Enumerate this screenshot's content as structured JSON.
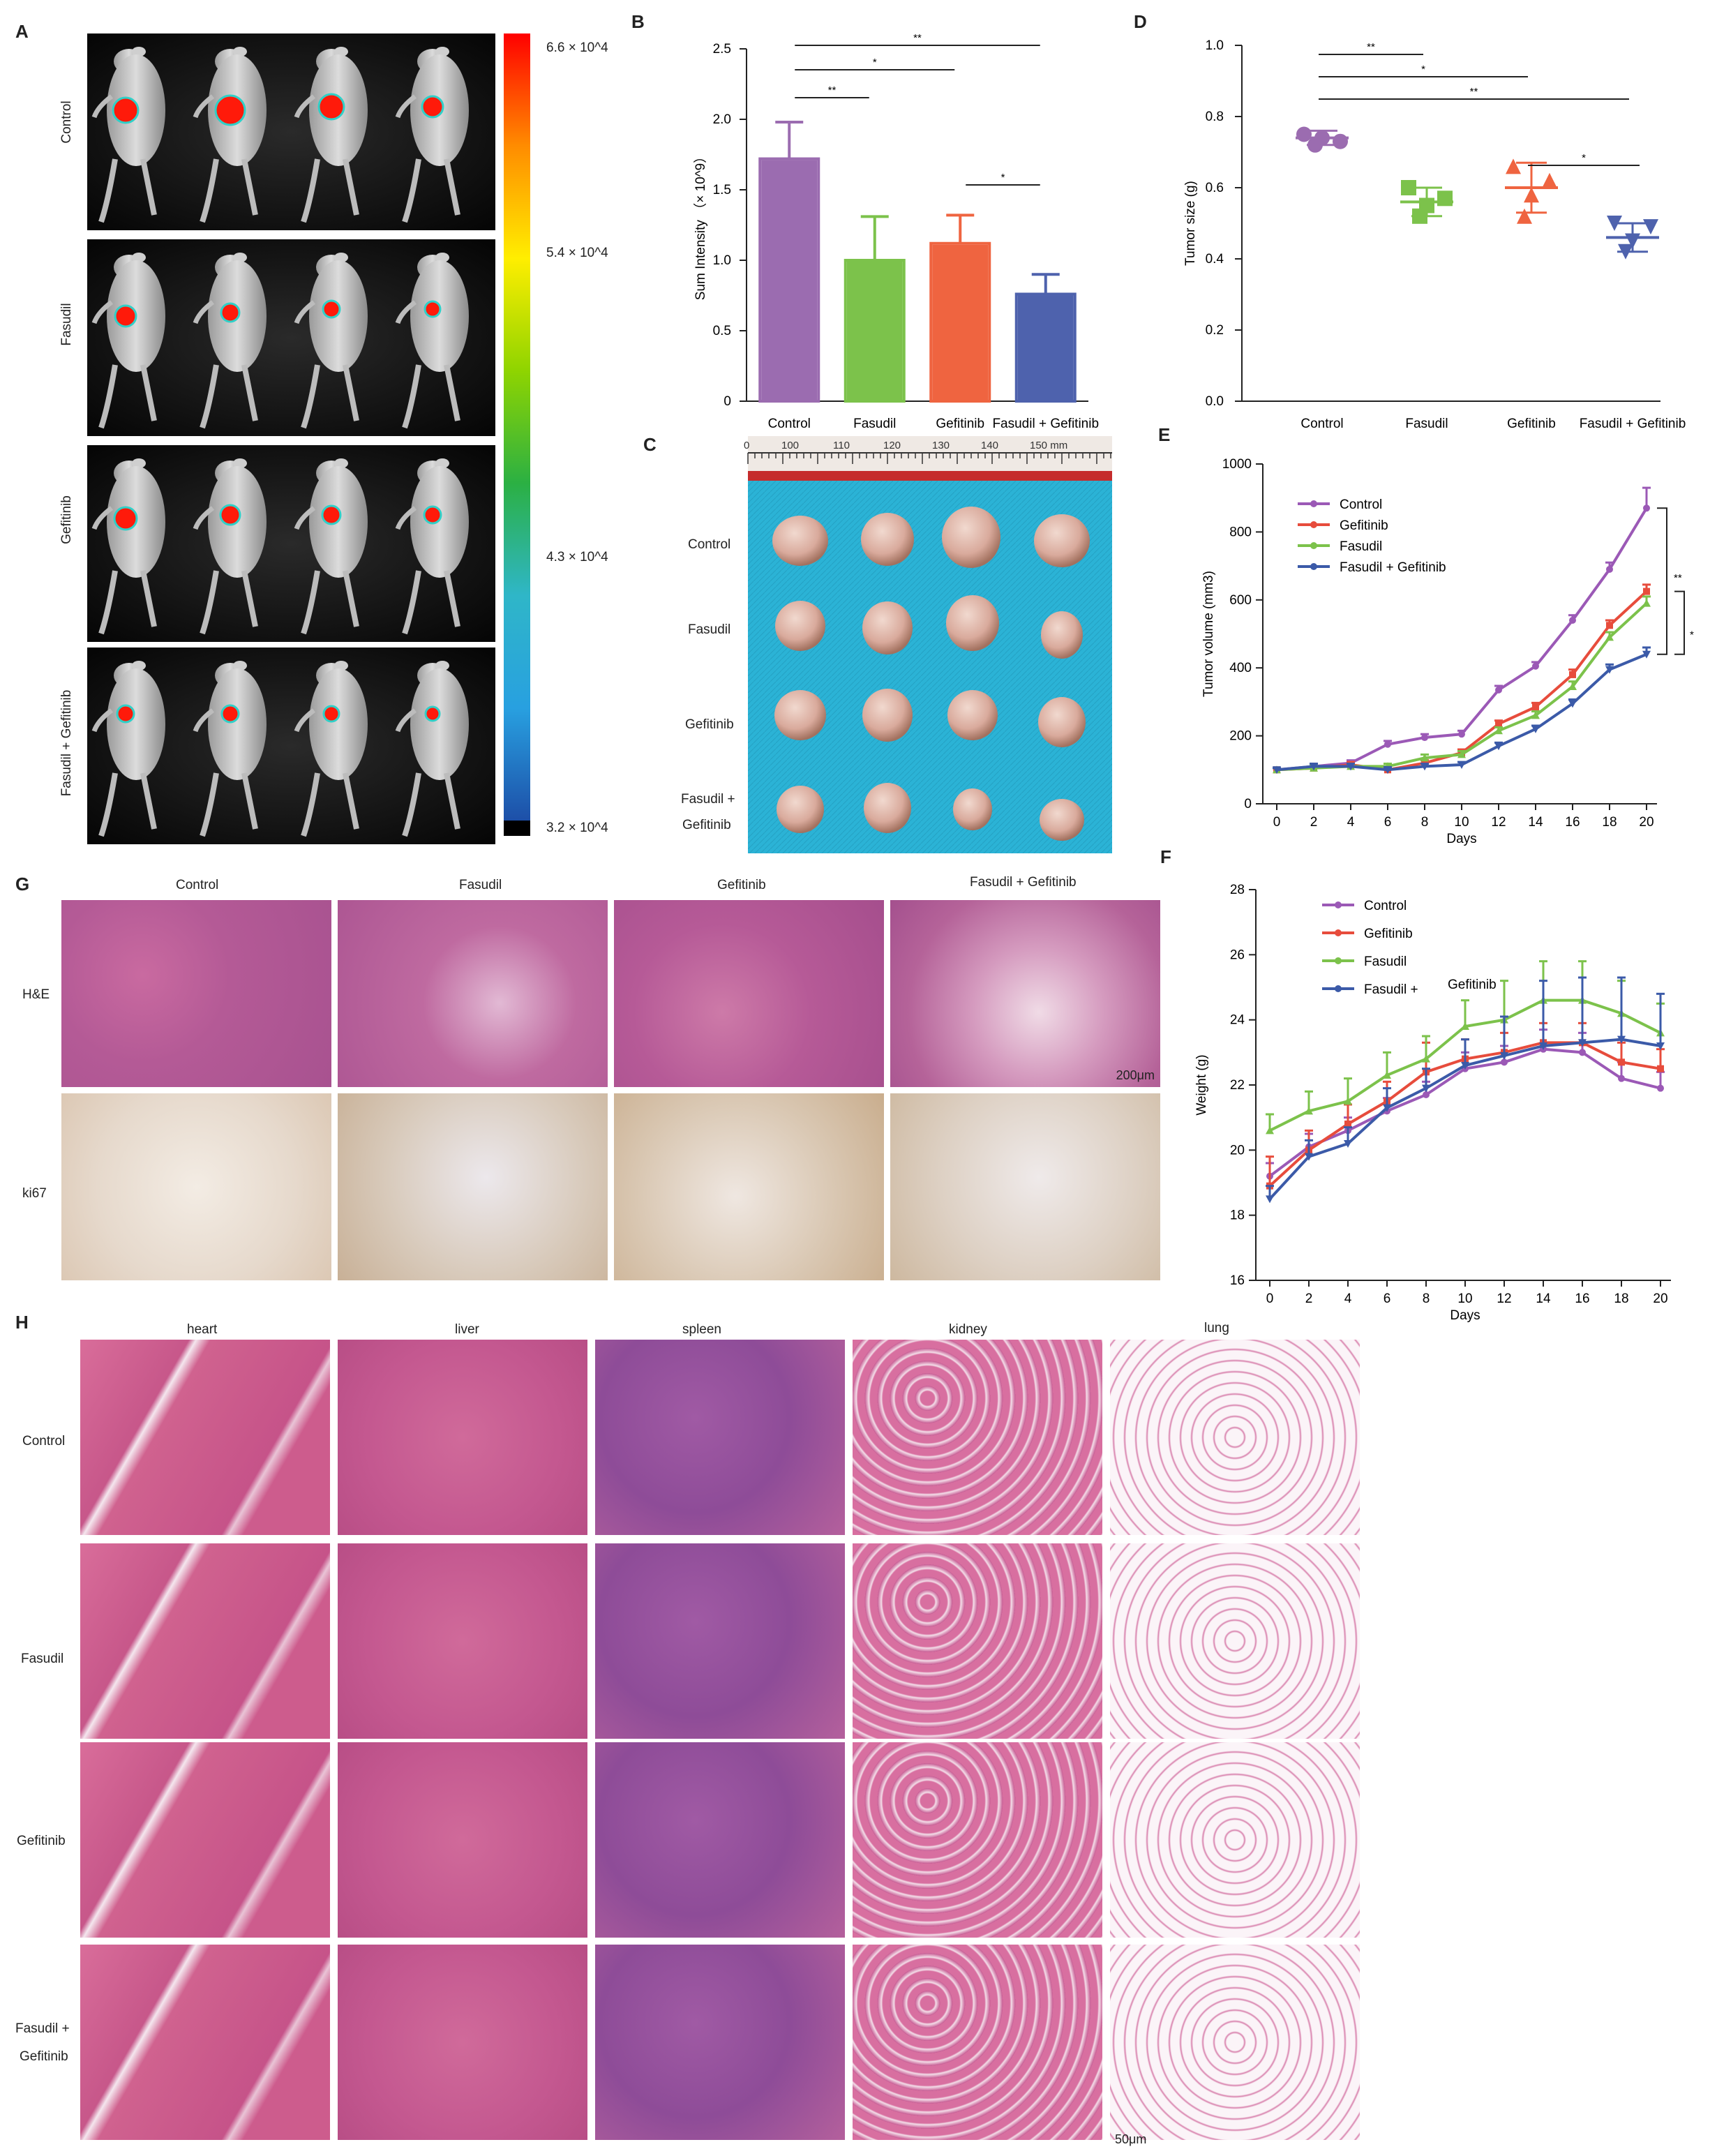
{
  "panel_labels": [
    "A",
    "B",
    "C",
    "D",
    "E",
    "F",
    "G",
    "H"
  ],
  "panel_a": {
    "groups": [
      "Control",
      "Fasudil",
      "Gefitinib",
      "Fasudil + Gefitinib"
    ],
    "colorbar": {
      "max_label": "6.6 × 10^4",
      "mid1_label": "5.4 × 10^4",
      "mid2_label": "4.3 × 10^4",
      "min_label": "3.2 × 10^4",
      "colors": [
        "#ff0000",
        "#ff8c00",
        "#ffee00",
        "#8fd400",
        "#2bb043",
        "#2fb6c8",
        "#28a0e0",
        "#1d4fa8",
        "#000000"
      ]
    }
  },
  "panel_c": {
    "row_labels": [
      "Control",
      "Fasudil",
      "Gefitinib",
      "Fasudil +",
      "Gefitinib"
    ],
    "ruler_labels": [
      "0",
      "100",
      "110",
      "120",
      "130",
      "140",
      "150 mm"
    ]
  },
  "panel_g": {
    "column_labels": [
      "Control",
      "Fasudil",
      "Gefitinib",
      "Fasudil + Gefitinib"
    ],
    "row_labels": [
      "H&E",
      "ki67"
    ],
    "scale_bar": "200μm"
  },
  "panel_h": {
    "column_labels": [
      "heart",
      "liver",
      "spleen",
      "kidney",
      "lung"
    ],
    "row_labels": [
      "Control",
      "Fasudil",
      "Gefitinib",
      "Fasudil +",
      "Gefitinib"
    ],
    "scale_bar": "50μm"
  },
  "chart_data": [
    {
      "panel": "B",
      "type": "bar",
      "categories": [
        "Control",
        "Fasudil",
        "Gefitinib",
        "Fasudil + Gefitinib"
      ],
      "values": [
        1.72,
        1.0,
        1.12,
        0.76
      ],
      "errors": [
        0.26,
        0.31,
        0.2,
        0.14
      ],
      "colors": [
        "#9b6cb0",
        "#7cc24b",
        "#ef6440",
        "#4e62ad"
      ],
      "ylabel": "Sum Intensity （× 10^9）",
      "ylim": [
        0,
        2.5
      ],
      "yticks": [
        "0",
        "0.5",
        "1.0",
        "1.5",
        "2.0",
        "2.5"
      ],
      "significance": [
        {
          "from": 0,
          "to": 1,
          "label": "**"
        },
        {
          "from": 0,
          "to": 2,
          "label": "*"
        },
        {
          "from": 0,
          "to": 3,
          "label": "**"
        },
        {
          "from": 2,
          "to": 3,
          "label": "*"
        }
      ]
    },
    {
      "panel": "D",
      "type": "scatter",
      "categories": [
        "Control",
        "Fasudil",
        "Gefitinib",
        "Fasudil +  Gefitinib"
      ],
      "points": [
        [
          0.75,
          0.73,
          0.74,
          0.72
        ],
        [
          0.6,
          0.57,
          0.55,
          0.52
        ],
        [
          0.66,
          0.62,
          0.58,
          0.52
        ],
        [
          0.5,
          0.49,
          0.45,
          0.42
        ]
      ],
      "means": [
        0.74,
        0.56,
        0.6,
        0.46
      ],
      "sd": [
        0.02,
        0.04,
        0.07,
        0.04
      ],
      "colors": [
        "#9b6cb0",
        "#7cc24b",
        "#ef6440",
        "#4e62ad"
      ],
      "markers": [
        "circle",
        "square",
        "triangle-up",
        "triangle-down"
      ],
      "ylabel": "Tumor size (g)",
      "ylim": [
        0,
        1.0
      ],
      "yticks": [
        "0.0",
        "0.2",
        "0.4",
        "0.6",
        "0.8",
        "1.0"
      ],
      "significance": [
        {
          "from": 0,
          "to": 1,
          "label": "**"
        },
        {
          "from": 0,
          "to": 2,
          "label": "*"
        },
        {
          "from": 0,
          "to": 3,
          "label": "**"
        },
        {
          "from": 2,
          "to": 3,
          "label": "*"
        }
      ]
    },
    {
      "panel": "E",
      "type": "line",
      "x": [
        0,
        2,
        4,
        6,
        8,
        10,
        12,
        14,
        16,
        18,
        20
      ],
      "xticks": [
        "0",
        "2",
        "4",
        "6",
        "8",
        "10",
        "12",
        "14",
        "16",
        "18",
        "20"
      ],
      "xlabel": "Days",
      "ylabel": "Tumor volume (mm3)",
      "ylim": [
        0,
        1000
      ],
      "yticks": [
        "0",
        "200",
        "400",
        "600",
        "800",
        "1000"
      ],
      "series": [
        {
          "name": "Control",
          "color": "#9b59b6",
          "values": [
            100,
            110,
            120,
            175,
            195,
            205,
            335,
            405,
            540,
            690,
            870
          ],
          "err": [
            5,
            8,
            8,
            10,
            10,
            10,
            12,
            12,
            15,
            20,
            60
          ]
        },
        {
          "name": "Gefitinib",
          "color": "#e74c3c",
          "values": [
            100,
            105,
            115,
            100,
            120,
            150,
            235,
            285,
            380,
            525,
            625
          ],
          "err": [
            5,
            8,
            8,
            8,
            8,
            10,
            10,
            12,
            15,
            15,
            20
          ]
        },
        {
          "name": "Fasudil",
          "color": "#7cc24b",
          "values": [
            100,
            105,
            110,
            110,
            135,
            145,
            215,
            260,
            345,
            490,
            590
          ],
          "err": [
            5,
            8,
            8,
            8,
            10,
            10,
            10,
            12,
            15,
            15,
            20
          ]
        },
        {
          "name": "Fasudil +      Gefitinib",
          "color": "#3b5aa8",
          "values": [
            100,
            110,
            110,
            100,
            110,
            115,
            170,
            220,
            295,
            395,
            440
          ],
          "err": [
            5,
            8,
            8,
            8,
            8,
            8,
            10,
            10,
            12,
            15,
            20
          ]
        }
      ],
      "significance": [
        {
          "label": "**"
        },
        {
          "label": "*"
        }
      ]
    },
    {
      "panel": "F",
      "type": "line",
      "x": [
        0,
        2,
        4,
        6,
        8,
        10,
        12,
        14,
        16,
        18,
        20
      ],
      "xticks": [
        "0",
        "2",
        "4",
        "6",
        "8",
        "10",
        "12",
        "14",
        "16",
        "18",
        "20"
      ],
      "xlabel": "Days",
      "ylabel": "Weight (g)",
      "ylim": [
        16,
        28
      ],
      "yticks": [
        "16",
        "18",
        "20",
        "22",
        "24",
        "26",
        "28"
      ],
      "series": [
        {
          "name": "Control",
          "color": "#9b59b6",
          "values": [
            19.2,
            20.1,
            20.6,
            21.2,
            21.7,
            22.5,
            22.7,
            23.1,
            23.0,
            22.2,
            21.9
          ],
          "err": [
            0.4,
            0.4,
            0.4,
            0.4,
            0.4,
            0.5,
            0.5,
            0.6,
            0.6,
            0.5,
            0.5
          ]
        },
        {
          "name": "Gefitinib",
          "color": "#e74c3c",
          "values": [
            18.9,
            20.0,
            20.8,
            21.5,
            22.4,
            22.8,
            23.0,
            23.3,
            23.3,
            22.7,
            22.5
          ],
          "err": [
            0.9,
            0.6,
            0.6,
            0.6,
            0.9,
            0.6,
            0.6,
            0.6,
            0.6,
            0.6,
            0.6
          ]
        },
        {
          "name": "Fasudil",
          "color": "#7cc24b",
          "values": [
            20.6,
            21.2,
            21.5,
            22.3,
            22.8,
            23.8,
            24.0,
            24.6,
            24.6,
            24.2,
            23.6
          ],
          "err": [
            0.5,
            0.6,
            0.7,
            0.7,
            0.7,
            0.8,
            1.2,
            1.2,
            1.2,
            1.0,
            0.9
          ]
        },
        {
          "name": "Fasudil +",
          "color": "#3b5aa8",
          "values": [
            18.5,
            19.8,
            20.2,
            21.3,
            21.9,
            22.6,
            22.9,
            23.2,
            23.3,
            23.4,
            23.2
          ],
          "err": [
            0.4,
            0.5,
            0.5,
            0.6,
            0.6,
            0.8,
            1.2,
            2.0,
            2.0,
            1.9,
            1.6
          ]
        }
      ],
      "legend_extra": "Gefitinib"
    }
  ]
}
